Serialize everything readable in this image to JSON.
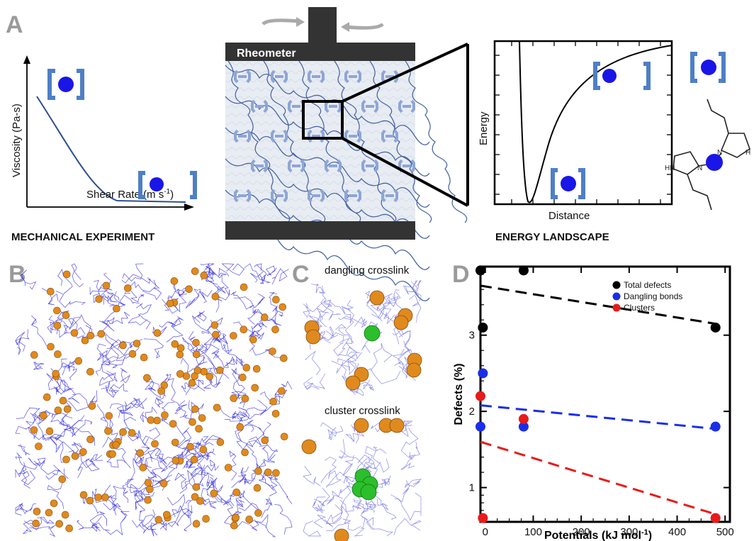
{
  "panels": {
    "A": {
      "label": "A",
      "mechanical": {
        "ylabel": "Viscosity (Pa-s)",
        "xlabel_text": "Shear Rate (m s",
        "xlabel_sup": "-1",
        "xlabel_close": ")",
        "caption": "MECHANICAL EXPERIMENT"
      },
      "rheometer": {
        "label": "Rheometer"
      },
      "energy": {
        "ylabel": "Energy",
        "xlabel": "Distance",
        "caption": "ENERGY LANDSCAPE"
      },
      "molecule": {
        "atoms": [
          "N",
          "H",
          "HN",
          "N"
        ]
      }
    },
    "B": {
      "label": "B"
    },
    "C": {
      "label": "C",
      "top_title": "dangling crosslink",
      "bottom_title": "cluster crosslink"
    },
    "D": {
      "label": "D"
    }
  },
  "colors": {
    "bracket": "#4f7fc6",
    "ball": "#1a16e8",
    "orange": "#e08a1e",
    "green": "#2bbf2b",
    "network": "#3a33dd",
    "plate": "#333333"
  },
  "chart_data": {
    "type": "scatter",
    "xlabel_text": "Potentials (kJ mol",
    "xlabel_sup": "-1",
    "xlabel_close": ")",
    "ylabel": "Defects (%)",
    "xlim": [
      -10,
      510
    ],
    "ylim": [
      0.55,
      3.9
    ],
    "xticks": [
      0,
      100,
      200,
      300,
      400,
      500
    ],
    "yticks": [
      1,
      2,
      3
    ],
    "legend_position": "top-right",
    "series": [
      {
        "name": "Total defects",
        "color": "#000000",
        "points": [
          [
            -10,
            3.85
          ],
          [
            -5,
            3.1
          ],
          [
            80,
            3.85
          ],
          [
            480,
            3.1
          ]
        ],
        "fit": [
          [
            -10,
            3.65
          ],
          [
            480,
            3.15
          ]
        ]
      },
      {
        "name": "Dangling bonds",
        "color": "#1a2ee8",
        "points": [
          [
            -5,
            2.5
          ],
          [
            -10,
            1.8
          ],
          [
            80,
            1.8
          ],
          [
            480,
            1.8
          ]
        ],
        "fit": [
          [
            -10,
            2.08
          ],
          [
            480,
            1.77
          ]
        ]
      },
      {
        "name": "Clusters",
        "color": "#e81a1a",
        "points": [
          [
            -10,
            2.2
          ],
          [
            -5,
            0.6
          ],
          [
            80,
            1.9
          ],
          [
            480,
            0.6
          ]
        ],
        "fit": [
          [
            -10,
            1.6
          ],
          [
            480,
            0.65
          ]
        ]
      }
    ]
  }
}
